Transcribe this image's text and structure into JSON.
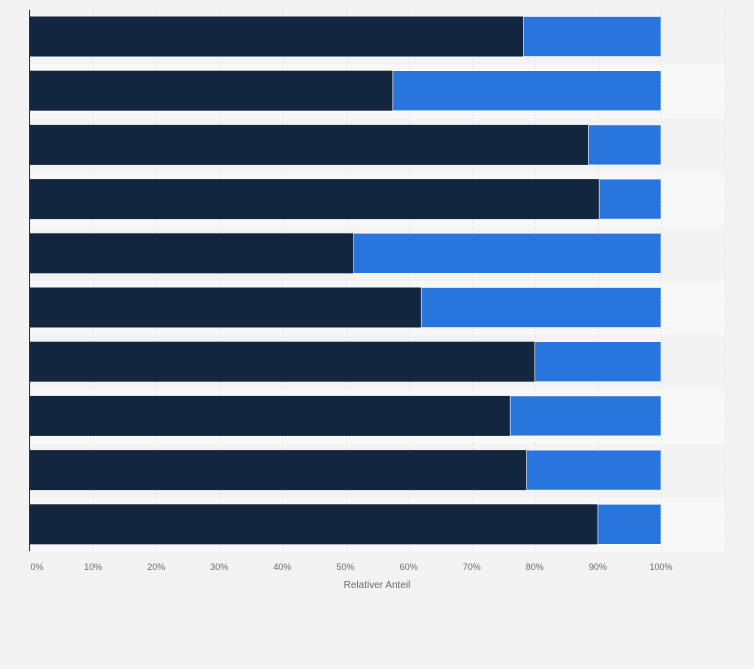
{
  "chart_data": {
    "type": "bar",
    "orientation": "horizontal",
    "stacked": true,
    "categories": [
      "",
      "",
      "",
      "",
      "",
      "",
      "",
      "",
      "",
      ""
    ],
    "series": [
      {
        "values": [
          78.2,
          57.5,
          88.5,
          90.2,
          51.3,
          62.0,
          80.0,
          76.1,
          78.7,
          90.0
        ]
      },
      {
        "values": [
          21.8,
          42.5,
          11.5,
          9.8,
          48.7,
          38.0,
          20.0,
          23.9,
          21.3,
          10.0
        ]
      }
    ],
    "colors": [
      "#12263f",
      "#2876dd"
    ],
    "xlim": [
      0,
      100
    ],
    "xticks": [
      "0%",
      "10%",
      "20%",
      "30%",
      "40%",
      "50%",
      "60%",
      "70%",
      "80%",
      "90%",
      "100%"
    ],
    "xlabel": "Relativer Anteil",
    "grid": "vertical",
    "legend": "none"
  }
}
